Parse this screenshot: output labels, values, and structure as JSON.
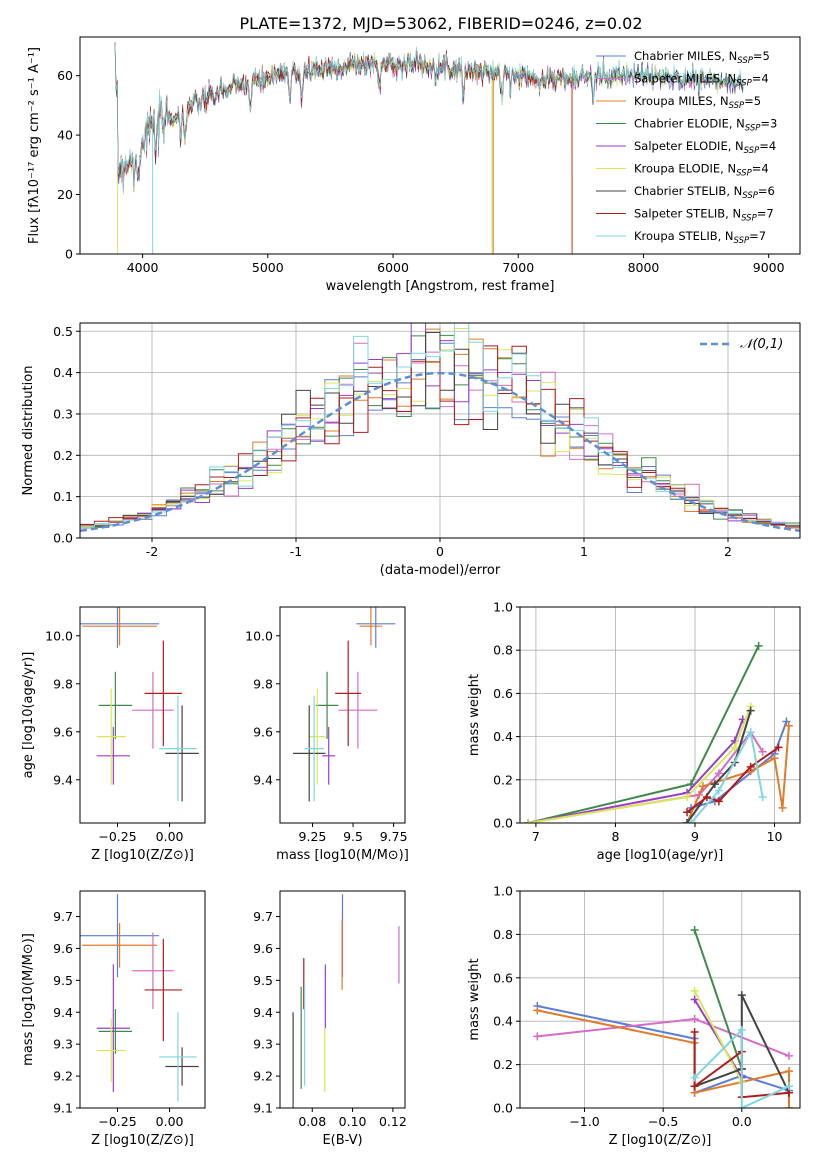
{
  "figure": {
    "title": "PLATE=1372, MJD=53062, FIBERID=0246, z=0.02"
  },
  "colors": {
    "chabrier_miles": "#5b7fd6",
    "salpeter_miles": "#d66cc6",
    "kroupa_miles": "#e07b2a",
    "chabrier_elodie": "#3f8a4a",
    "salpeter_elodie": "#9b3ec7",
    "kroupa_elodie": "#d9e85a",
    "chabrier_stelib": "#444444",
    "salpeter_stelib": "#b01c1c",
    "kroupa_stelib": "#7ed6e0",
    "gaussian": "#5b8fd6"
  },
  "chart_data": [
    {
      "type": "line",
      "id": "spectrum",
      "xlabel": "wavelength [Angstrom, rest frame]",
      "ylabel": "Flux [fλ10⁻¹⁷ erg cm⁻² s⁻¹ A⁻¹]",
      "xlim": [
        3500,
        9250
      ],
      "ylim": [
        0,
        73
      ],
      "xticks": [
        4000,
        5000,
        6000,
        7000,
        8000,
        9000
      ],
      "yticks": [
        0,
        20,
        40,
        60
      ],
      "legend_position": "top-right",
      "legend": [
        "Chabrier MILES, N_SSP=5",
        "Salpeter MILES, N_SSP=4",
        "Kroupa MILES, N_SSP=5",
        "Chabrier ELODIE, N_SSP=3",
        "Salpeter ELODIE, N_SSP=4",
        "Kroupa ELODIE, N_SSP=4",
        "Chabrier STELIB, N_SSP=6",
        "Salpeter STELIB, N_SSP=7",
        "Kroupa STELIB, N_SSP=7"
      ],
      "continuum": [
        [
          3800,
          28
        ],
        [
          3950,
          34
        ],
        [
          4050,
          42
        ],
        [
          4200,
          45
        ],
        [
          4400,
          50
        ],
        [
          4600,
          54
        ],
        [
          4800,
          57
        ],
        [
          5000,
          59
        ],
        [
          5200,
          61
        ],
        [
          5400,
          62
        ],
        [
          5600,
          63
        ],
        [
          5800,
          64
        ],
        [
          6000,
          64
        ],
        [
          6200,
          64
        ],
        [
          6400,
          63
        ],
        [
          6600,
          62
        ],
        [
          6800,
          61
        ],
        [
          7000,
          60
        ],
        [
          7200,
          59
        ],
        [
          7400,
          59
        ],
        [
          7600,
          60
        ],
        [
          7800,
          60
        ],
        [
          8000,
          60
        ],
        [
          8200,
          59
        ],
        [
          8400,
          59
        ],
        [
          8600,
          58
        ],
        [
          8800,
          57
        ]
      ],
      "drops": [
        {
          "series": "kroupa_elodie",
          "x": 3800,
          "x_end": 3800
        },
        {
          "series": "kroupa_stelib",
          "x": 4080,
          "x_end": 4080
        },
        {
          "series": "kroupa_elodie",
          "x": 6790,
          "x_end": 6790
        },
        {
          "series": "kroupa_miles",
          "x": 6800,
          "x_end": 6800
        },
        {
          "series": "kroupa_miles",
          "x": 7430,
          "x_end": 7430
        }
      ]
    },
    {
      "type": "bar",
      "id": "residuals",
      "xlabel": "(data-model)/error",
      "ylabel": "Normed distribution",
      "xlim": [
        -2.5,
        2.5
      ],
      "ylim": [
        0,
        0.52
      ],
      "xticks": [
        -2,
        -1,
        0,
        1,
        2
      ],
      "yticks": [
        0.0,
        0.1,
        0.2,
        0.3,
        0.4,
        0.5
      ],
      "legend_position": "top-right",
      "legend": [
        "𝒩(0,1)"
      ],
      "grid": true
    },
    {
      "type": "scatter",
      "id": "age_vs_Z",
      "xlabel": "Z [log10(Z/Z⊙)]",
      "ylabel": "age [log10(age/yr)]",
      "xlim": [
        -0.43,
        0.17
      ],
      "ylim": [
        9.22,
        10.12
      ],
      "xticks": [
        -0.25,
        0.0
      ],
      "xtick_labels": [
        "−0.25",
        "0.00"
      ],
      "yticks": [
        9.4,
        9.6,
        9.8,
        10.0
      ],
      "points": [
        {
          "series": "chabrier_miles",
          "x": -0.25,
          "xerr": 0.2,
          "y": 10.05,
          "yerr": 0.1
        },
        {
          "series": "kroupa_miles",
          "x": -0.24,
          "xerr": 0.18,
          "y": 10.04,
          "yerr": 0.08
        },
        {
          "series": "salpeter_miles",
          "x": -0.08,
          "xerr": 0.1,
          "y": 9.69,
          "yerr": 0.16
        },
        {
          "series": "chabrier_elodie",
          "x": -0.26,
          "xerr": 0.08,
          "y": 9.71,
          "yerr": 0.14
        },
        {
          "series": "salpeter_elodie",
          "x": -0.27,
          "xerr": 0.08,
          "y": 9.5,
          "yerr": 0.12
        },
        {
          "series": "kroupa_elodie",
          "x": -0.28,
          "xerr": 0.07,
          "y": 9.58,
          "yerr": 0.2
        },
        {
          "series": "chabrier_stelib",
          "x": 0.06,
          "xerr": 0.08,
          "y": 9.51,
          "yerr": 0.2
        },
        {
          "series": "salpeter_stelib",
          "x": -0.03,
          "xerr": 0.09,
          "y": 9.76,
          "yerr": 0.22
        },
        {
          "series": "kroupa_stelib",
          "x": 0.04,
          "xerr": 0.09,
          "y": 9.53,
          "yerr": 0.22
        }
      ]
    },
    {
      "type": "scatter",
      "id": "age_vs_mass",
      "xlabel": "mass [log10(M/M⊙)]",
      "xlim": [
        9.05,
        9.82
      ],
      "ylim": [
        9.22,
        10.12
      ],
      "xticks": [
        9.25,
        9.5,
        9.75
      ],
      "yticks": [
        9.4,
        9.6,
        9.8,
        10.0
      ],
      "points": [
        {
          "series": "chabrier_miles",
          "x": 9.64,
          "xerr": 0.12,
          "y": 10.05,
          "yerr": 0.1
        },
        {
          "series": "kroupa_miles",
          "x": 9.61,
          "xerr": 0.07,
          "y": 10.04,
          "yerr": 0.08
        },
        {
          "series": "salpeter_miles",
          "x": 9.53,
          "xerr": 0.12,
          "y": 9.69,
          "yerr": 0.16
        },
        {
          "series": "chabrier_elodie",
          "x": 9.34,
          "xerr": 0.07,
          "y": 9.71,
          "yerr": 0.14
        },
        {
          "series": "salpeter_elodie",
          "x": 9.35,
          "xerr": 0.04,
          "y": 9.5,
          "yerr": 0.12
        },
        {
          "series": "kroupa_elodie",
          "x": 9.28,
          "xerr": 0.05,
          "y": 9.58,
          "yerr": 0.2
        },
        {
          "series": "chabrier_stelib",
          "x": 9.23,
          "xerr": 0.1,
          "y": 9.51,
          "yerr": 0.2
        },
        {
          "series": "salpeter_stelib",
          "x": 9.47,
          "xerr": 0.08,
          "y": 9.76,
          "yerr": 0.22
        },
        {
          "series": "kroupa_stelib",
          "x": 9.26,
          "xerr": 0.06,
          "y": 9.53,
          "yerr": 0.22
        }
      ]
    },
    {
      "type": "line",
      "id": "massweight_vs_age",
      "xlabel": "age [log10(age/yr)]",
      "ylabel": "mass weight",
      "xlim": [
        6.8,
        10.32
      ],
      "ylim": [
        0,
        1
      ],
      "xticks": [
        7,
        8,
        9,
        10
      ],
      "yticks": [
        0.0,
        0.2,
        0.4,
        0.6,
        0.8,
        1.0
      ],
      "grid": true,
      "series": [
        {
          "key": "chabrier_miles",
          "points": [
            [
              8.95,
              0.07
            ],
            [
              9.25,
              0.1
            ],
            [
              10.0,
              0.32
            ],
            [
              10.15,
              0.47
            ]
          ]
        },
        {
          "key": "salpeter_miles",
          "points": [
            [
              6.9,
              0.0
            ],
            [
              9.05,
              0.13
            ],
            [
              9.3,
              0.23
            ],
            [
              9.7,
              0.42
            ],
            [
              9.85,
              0.33
            ]
          ]
        },
        {
          "key": "kroupa_miles",
          "points": [
            [
              8.9,
              0.0
            ],
            [
              9.1,
              0.17
            ],
            [
              9.7,
              0.24
            ],
            [
              10.0,
              0.3
            ],
            [
              10.1,
              0.07
            ],
            [
              10.18,
              0.45
            ]
          ]
        },
        {
          "key": "chabrier_elodie",
          "points": [
            [
              6.9,
              0.0
            ],
            [
              8.95,
              0.18
            ],
            [
              9.8,
              0.82
            ]
          ]
        },
        {
          "key": "salpeter_elodie",
          "points": [
            [
              6.9,
              0.0
            ],
            [
              8.9,
              0.14
            ],
            [
              9.5,
              0.38
            ],
            [
              9.6,
              0.48
            ]
          ]
        },
        {
          "key": "kroupa_elodie",
          "points": [
            [
              6.9,
              0.0
            ],
            [
              8.9,
              0.12
            ],
            [
              9.5,
              0.35
            ],
            [
              9.7,
              0.54
            ]
          ]
        },
        {
          "key": "chabrier_stelib",
          "points": [
            [
              8.9,
              0.0
            ],
            [
              9.25,
              0.18
            ],
            [
              9.5,
              0.28
            ],
            [
              9.7,
              0.52
            ]
          ]
        },
        {
          "key": "salpeter_stelib",
          "points": [
            [
              8.9,
              0.05
            ],
            [
              9.15,
              0.12
            ],
            [
              9.3,
              0.1
            ],
            [
              9.7,
              0.26
            ],
            [
              10.05,
              0.35
            ]
          ]
        },
        {
          "key": "kroupa_stelib",
          "points": [
            [
              8.95,
              0.0
            ],
            [
              9.3,
              0.15
            ],
            [
              9.7,
              0.42
            ],
            [
              9.85,
              0.12
            ]
          ]
        }
      ]
    },
    {
      "type": "scatter",
      "id": "mass_vs_Z",
      "xlabel": "Z [log10(Z/Z⊙)]",
      "ylabel": "mass [log10(M/M⊙)]",
      "xlim": [
        -0.43,
        0.17
      ],
      "ylim": [
        9.1,
        9.78
      ],
      "xticks": [
        -0.25,
        0.0
      ],
      "xtick_labels": [
        "−0.25",
        "0.00"
      ],
      "yticks": [
        9.1,
        9.2,
        9.3,
        9.4,
        9.5,
        9.6,
        9.7
      ],
      "points": [
        {
          "series": "chabrier_miles",
          "x": -0.25,
          "xerr": 0.2,
          "y": 9.64,
          "yerr": 0.13
        },
        {
          "series": "kroupa_miles",
          "x": -0.24,
          "xerr": 0.18,
          "y": 9.61,
          "yerr": 0.07
        },
        {
          "series": "salpeter_miles",
          "x": -0.08,
          "xerr": 0.1,
          "y": 9.53,
          "yerr": 0.12
        },
        {
          "series": "chabrier_elodie",
          "x": -0.26,
          "xerr": 0.08,
          "y": 9.34,
          "yerr": 0.07
        },
        {
          "series": "salpeter_elodie",
          "x": -0.27,
          "xerr": 0.08,
          "y": 9.35,
          "yerr": 0.2
        },
        {
          "series": "kroupa_elodie",
          "x": -0.28,
          "xerr": 0.07,
          "y": 9.28,
          "yerr": 0.1
        },
        {
          "series": "chabrier_stelib",
          "x": 0.06,
          "xerr": 0.08,
          "y": 9.23,
          "yerr": 0.06
        },
        {
          "series": "salpeter_stelib",
          "x": -0.03,
          "xerr": 0.09,
          "y": 9.47,
          "yerr": 0.16
        },
        {
          "series": "kroupa_stelib",
          "x": 0.04,
          "xerr": 0.09,
          "y": 9.26,
          "yerr": 0.14
        }
      ]
    },
    {
      "type": "scatter",
      "id": "mass_vs_EBV",
      "xlabel": "E(B-V)",
      "xlim": [
        0.064,
        0.126
      ],
      "ylim": [
        9.1,
        9.78
      ],
      "xticks": [
        0.08,
        0.1,
        0.12
      ],
      "xtick_labels": [
        "0.08",
        "0.10",
        "0.12"
      ],
      "yticks": [
        9.1,
        9.2,
        9.3,
        9.4,
        9.5,
        9.6,
        9.7
      ],
      "points": [
        {
          "series": "chabrier_miles",
          "x": 0.095,
          "y": 9.64,
          "yerr": 0.13
        },
        {
          "series": "kroupa_miles",
          "x": 0.0948,
          "y": 9.58,
          "yerr": 0.11
        },
        {
          "series": "salpeter_miles",
          "x": 0.123,
          "y": 9.58,
          "yerr": 0.09
        },
        {
          "series": "chabrier_elodie",
          "x": 0.0745,
          "y": 9.32,
          "yerr": 0.16
        },
        {
          "series": "salpeter_elodie",
          "x": 0.0865,
          "y": 9.45,
          "yerr": 0.1
        },
        {
          "series": "kroupa_elodie",
          "x": 0.0862,
          "y": 9.25,
          "yerr": 0.1
        },
        {
          "series": "chabrier_stelib",
          "x": 0.0705,
          "y": 9.25,
          "yerr": 0.15
        },
        {
          "series": "salpeter_stelib",
          "x": 0.0758,
          "y": 9.49,
          "yerr": 0.08
        },
        {
          "series": "kroupa_stelib",
          "x": 0.0762,
          "y": 9.33,
          "yerr": 0.16
        }
      ]
    },
    {
      "type": "line",
      "id": "massweight_vs_Z",
      "xlabel": "Z [log10(Z/Z⊙)]",
      "ylabel": "mass weight",
      "xlim": [
        -1.41,
        0.37
      ],
      "ylim": [
        0,
        1
      ],
      "xticks": [
        -1.0,
        -0.5,
        0.0
      ],
      "xtick_labels": [
        "−1.0",
        "−0.5",
        "0.0"
      ],
      "yticks": [
        0.0,
        0.2,
        0.4,
        0.6,
        0.8,
        1.0
      ],
      "grid": true,
      "series": [
        {
          "key": "chabrier_miles",
          "points": [
            [
              -1.3,
              0.47
            ],
            [
              -0.3,
              0.32
            ],
            [
              -0.3,
              0.07
            ],
            [
              0.0,
              0.15
            ],
            [
              0.3,
              0.08
            ]
          ]
        },
        {
          "key": "salpeter_miles",
          "points": [
            [
              -1.3,
              0.33
            ],
            [
              -0.3,
              0.41
            ],
            [
              0.3,
              0.24
            ]
          ]
        },
        {
          "key": "kroupa_miles",
          "points": [
            [
              -1.3,
              0.45
            ],
            [
              -0.3,
              0.3
            ],
            [
              -0.3,
              0.07
            ],
            [
              0.0,
              0.12
            ],
            [
              0.3,
              0.17
            ],
            [
              0.3,
              0.0
            ]
          ]
        },
        {
          "key": "chabrier_elodie",
          "points": [
            [
              -0.3,
              0.82
            ],
            [
              0.0,
              0.18
            ]
          ]
        },
        {
          "key": "salpeter_elodie",
          "points": [
            [
              -0.3,
              0.5
            ],
            [
              0.0,
              0.14
            ]
          ]
        },
        {
          "key": "kroupa_elodie",
          "points": [
            [
              -0.3,
              0.54
            ],
            [
              0.0,
              0.12
            ]
          ]
        },
        {
          "key": "chabrier_stelib",
          "points": [
            [
              -0.3,
              0.1
            ],
            [
              0.0,
              0.18
            ],
            [
              0.0,
              0.52
            ],
            [
              0.3,
              0.07
            ]
          ]
        },
        {
          "key": "salpeter_stelib",
          "points": [
            [
              -0.3,
              0.35
            ],
            [
              -0.3,
              0.1
            ],
            [
              0.0,
              0.26
            ],
            [
              0.0,
              0.05
            ],
            [
              0.3,
              0.07
            ]
          ]
        },
        {
          "key": "kroupa_stelib",
          "points": [
            [
              -0.3,
              0.14
            ],
            [
              0.0,
              0.36
            ],
            [
              0.0,
              0.0
            ],
            [
              0.3,
              0.1
            ]
          ]
        }
      ]
    }
  ]
}
